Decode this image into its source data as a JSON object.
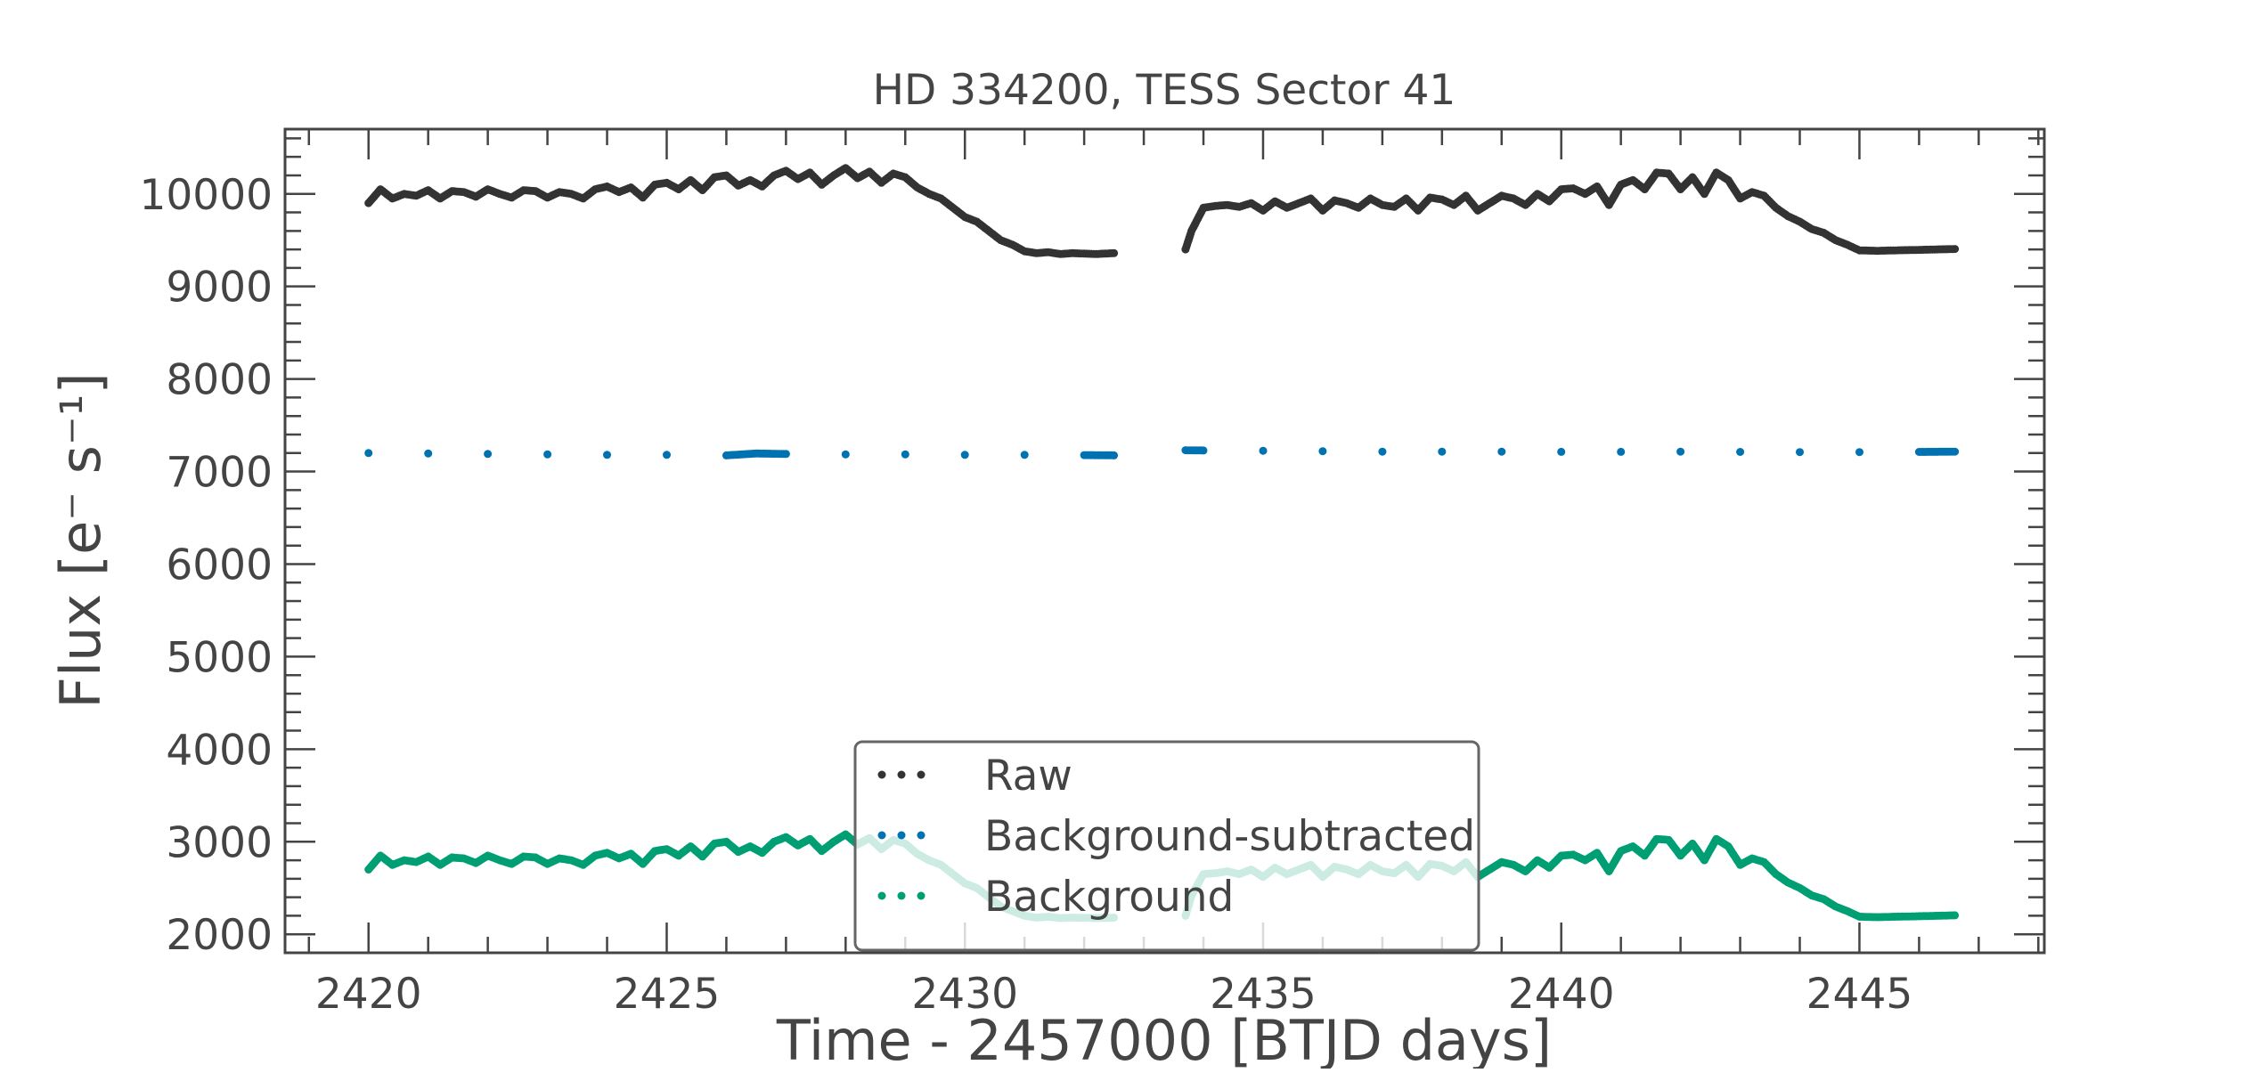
{
  "chart_data": {
    "type": "scatter",
    "title": "HD 334200, TESS Sector 41",
    "xlabel": "Time - 2457000 [BTJD days]",
    "ylabel": "Flux [e⁻ s⁻¹]",
    "xlim": [
      2418.6,
      2448.1
    ],
    "ylim": [
      1800,
      10700
    ],
    "x_ticks": [
      2420,
      2425,
      2430,
      2435,
      2440,
      2445
    ],
    "x_tick_labels": [
      "2420",
      "2425",
      "2430",
      "2435",
      "2440",
      "2445"
    ],
    "y_ticks": [
      2000,
      3000,
      4000,
      5000,
      6000,
      7000,
      8000,
      9000,
      10000
    ],
    "y_tick_labels": [
      "2000",
      "3000",
      "4000",
      "5000",
      "6000",
      "7000",
      "8000",
      "9000",
      "10000"
    ],
    "grid": false,
    "legend_position": "lower-center",
    "series": [
      {
        "name": "Raw",
        "color": "#333333",
        "x": [
          2420.0,
          2420.2,
          2420.4,
          2420.6,
          2420.8,
          2421.0,
          2421.2,
          2421.4,
          2421.6,
          2421.8,
          2422.0,
          2422.2,
          2422.4,
          2422.6,
          2422.8,
          2423.0,
          2423.2,
          2423.4,
          2423.6,
          2423.8,
          2424.0,
          2424.2,
          2424.4,
          2424.6,
          2424.8,
          2425.0,
          2425.2,
          2425.4,
          2425.6,
          2425.8,
          2426.0,
          2426.2,
          2426.4,
          2426.6,
          2426.8,
          2427.0,
          2427.2,
          2427.4,
          2427.6,
          2427.8,
          2428.0,
          2428.2,
          2428.4,
          2428.6,
          2428.8,
          2429.0,
          2429.2,
          2429.4,
          2429.6,
          2429.8,
          2430.0,
          2430.2,
          2430.4,
          2430.6,
          2430.8,
          2431.0,
          2431.2,
          2431.4,
          2431.6,
          2431.8,
          2432.0,
          2432.2,
          2432.5,
          2433.7,
          2433.8,
          2434.0,
          2434.2,
          2434.4,
          2434.6,
          2434.8,
          2435.0,
          2435.2,
          2435.4,
          2435.6,
          2435.8,
          2436.0,
          2436.2,
          2436.4,
          2436.6,
          2436.8,
          2437.0,
          2437.2,
          2437.4,
          2437.6,
          2437.8,
          2438.0,
          2438.2,
          2438.4,
          2438.6,
          2438.8,
          2439.0,
          2439.2,
          2439.4,
          2439.6,
          2439.8,
          2440.0,
          2440.2,
          2440.4,
          2440.6,
          2440.8,
          2441.0,
          2441.2,
          2441.4,
          2441.6,
          2441.8,
          2442.0,
          2442.2,
          2442.4,
          2442.6,
          2442.8,
          2443.0,
          2443.2,
          2443.4,
          2443.6,
          2443.8,
          2444.0,
          2444.2,
          2444.4,
          2444.6,
          2444.8,
          2445.0,
          2445.3,
          2445.6,
          2446.0,
          2446.3,
          2446.6
        ],
        "y": [
          9900,
          10050,
          9950,
          10000,
          9980,
          10040,
          9950,
          10030,
          10020,
          9970,
          10050,
          10000,
          9960,
          10040,
          10030,
          9960,
          10020,
          10000,
          9950,
          10050,
          10080,
          10020,
          10070,
          9960,
          10100,
          10120,
          10050,
          10150,
          10040,
          10180,
          10200,
          10090,
          10150,
          10080,
          10200,
          10250,
          10160,
          10230,
          10100,
          10200,
          10280,
          10170,
          10240,
          10120,
          10220,
          10180,
          10070,
          10000,
          9950,
          9850,
          9750,
          9700,
          9600,
          9500,
          9450,
          9380,
          9360,
          9370,
          9350,
          9360,
          9355,
          9350,
          9360,
          9400,
          9600,
          9850,
          9870,
          9880,
          9860,
          9900,
          9820,
          9920,
          9850,
          9900,
          9950,
          9820,
          9930,
          9900,
          9850,
          9950,
          9880,
          9860,
          9950,
          9820,
          9960,
          9940,
          9880,
          9980,
          9820,
          9900,
          9980,
          9950,
          9880,
          10000,
          9920,
          10050,
          10060,
          10000,
          10080,
          9880,
          10100,
          10150,
          10050,
          10230,
          10220,
          10050,
          10180,
          10000,
          10230,
          10150,
          9950,
          10020,
          9980,
          9850,
          9760,
          9700,
          9620,
          9580,
          9500,
          9450,
          9390,
          9385,
          9390,
          9395,
          9400,
          9405
        ]
      },
      {
        "name": "Background-subtracted",
        "color": "#0072b2",
        "x": [
          2420.0,
          2421.0,
          2422.0,
          2423.0,
          2424.0,
          2425.0,
          2426.0,
          2426.5,
          2427.0,
          2428.0,
          2429.0,
          2430.0,
          2431.0,
          2432.0,
          2432.5,
          2433.7,
          2434.0,
          2435.0,
          2436.0,
          2437.0,
          2438.0,
          2439.0,
          2440.0,
          2441.0,
          2442.0,
          2443.0,
          2444.0,
          2445.0,
          2446.0,
          2446.6
        ],
        "y": [
          7200,
          7195,
          7190,
          7185,
          7180,
          7180,
          7175,
          7195,
          7190,
          7185,
          7185,
          7180,
          7180,
          7178,
          7175,
          7230,
          7228,
          7225,
          7220,
          7215,
          7215,
          7215,
          7213,
          7213,
          7215,
          7212,
          7210,
          7210,
          7212,
          7215
        ]
      },
      {
        "name": "Background",
        "color": "#009e73",
        "x": [
          2420.0,
          2420.2,
          2420.4,
          2420.6,
          2420.8,
          2421.0,
          2421.2,
          2421.4,
          2421.6,
          2421.8,
          2422.0,
          2422.2,
          2422.4,
          2422.6,
          2422.8,
          2423.0,
          2423.2,
          2423.4,
          2423.6,
          2423.8,
          2424.0,
          2424.2,
          2424.4,
          2424.6,
          2424.8,
          2425.0,
          2425.2,
          2425.4,
          2425.6,
          2425.8,
          2426.0,
          2426.2,
          2426.4,
          2426.6,
          2426.8,
          2427.0,
          2427.2,
          2427.4,
          2427.6,
          2427.8,
          2428.0,
          2428.2,
          2428.4,
          2428.6,
          2428.8,
          2429.0,
          2429.2,
          2429.4,
          2429.6,
          2429.8,
          2430.0,
          2430.2,
          2430.4,
          2430.6,
          2430.8,
          2431.0,
          2431.2,
          2431.4,
          2431.6,
          2431.8,
          2432.0,
          2432.2,
          2432.5,
          2433.7,
          2433.8,
          2434.0,
          2434.2,
          2434.4,
          2434.6,
          2434.8,
          2435.0,
          2435.2,
          2435.4,
          2435.6,
          2435.8,
          2436.0,
          2436.2,
          2436.4,
          2436.6,
          2436.8,
          2437.0,
          2437.2,
          2437.4,
          2437.6,
          2437.8,
          2438.0,
          2438.2,
          2438.4,
          2438.6,
          2438.8,
          2439.0,
          2439.2,
          2439.4,
          2439.6,
          2439.8,
          2440.0,
          2440.2,
          2440.4,
          2440.6,
          2440.8,
          2441.0,
          2441.2,
          2441.4,
          2441.6,
          2441.8,
          2442.0,
          2442.2,
          2442.4,
          2442.6,
          2442.8,
          2443.0,
          2443.2,
          2443.4,
          2443.6,
          2443.8,
          2444.0,
          2444.2,
          2444.4,
          2444.6,
          2444.8,
          2445.0,
          2445.3,
          2445.6,
          2446.0,
          2446.3,
          2446.6
        ],
        "y": [
          2700,
          2850,
          2750,
          2800,
          2780,
          2840,
          2750,
          2830,
          2820,
          2770,
          2850,
          2800,
          2760,
          2840,
          2830,
          2760,
          2820,
          2800,
          2750,
          2850,
          2880,
          2820,
          2870,
          2760,
          2900,
          2920,
          2850,
          2950,
          2840,
          2980,
          3000,
          2890,
          2950,
          2880,
          3000,
          3050,
          2960,
          3030,
          2900,
          3000,
          3080,
          2970,
          3040,
          2920,
          3020,
          2980,
          2870,
          2800,
          2750,
          2650,
          2550,
          2500,
          2400,
          2300,
          2250,
          2200,
          2180,
          2190,
          2175,
          2180,
          2178,
          2175,
          2180,
          2200,
          2420,
          2650,
          2660,
          2680,
          2650,
          2700,
          2620,
          2720,
          2650,
          2700,
          2750,
          2620,
          2730,
          2700,
          2650,
          2750,
          2680,
          2660,
          2750,
          2620,
          2760,
          2740,
          2680,
          2780,
          2620,
          2700,
          2780,
          2750,
          2680,
          2800,
          2720,
          2850,
          2860,
          2800,
          2880,
          2680,
          2900,
          2950,
          2850,
          3030,
          3020,
          2850,
          2980,
          2800,
          3030,
          2950,
          2750,
          2820,
          2780,
          2650,
          2560,
          2500,
          2420,
          2380,
          2300,
          2250,
          2190,
          2185,
          2190,
          2195,
          2200,
          2205
        ]
      }
    ]
  }
}
